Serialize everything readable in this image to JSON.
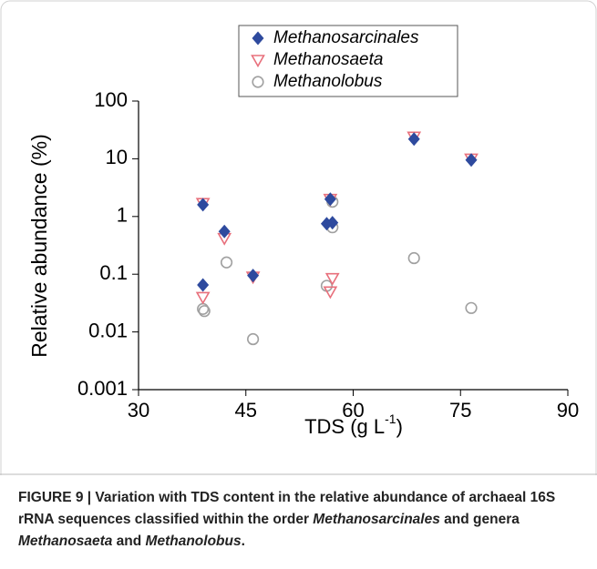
{
  "chart_data": {
    "type": "scatter",
    "y_label": "Relative abundance (%)",
    "x_label": {
      "text": "TDS (g L",
      "superscript": "-1",
      "suffix": ")"
    },
    "xlim": [
      30,
      90
    ],
    "xticks": [
      30,
      45,
      60,
      75,
      90
    ],
    "ylim": [
      0.001,
      100
    ],
    "yticks": [
      0.001,
      0.01,
      0.1,
      1,
      10,
      100
    ],
    "ylog": true,
    "grid": false,
    "legend": "top",
    "series": [
      {
        "name": "Methanosarcinales",
        "color": "#2e4a9e",
        "marker": "diamond",
        "x": [
          39,
          39,
          42,
          46,
          56.3,
          56.8,
          57.1,
          68.5,
          76.5
        ],
        "values": [
          1.6,
          0.065,
          0.55,
          0.095,
          0.75,
          2.0,
          0.78,
          22,
          9.5
        ]
      },
      {
        "name": "Methanosaeta",
        "color": "#e8707c",
        "marker": "triangle",
        "x": [
          39,
          39,
          42,
          46,
          56.8,
          57.1,
          56.8,
          68.5,
          76.5
        ],
        "values": [
          1.7,
          0.04,
          0.42,
          0.09,
          0.05,
          0.085,
          2.0,
          24,
          10
        ]
      },
      {
        "name": "Methanolobus",
        "color": "#a0a0a0",
        "marker": "circle",
        "x": [
          39,
          39.2,
          42.3,
          46,
          56.3,
          57.1,
          57.1,
          68.5,
          76.5
        ],
        "values": [
          0.025,
          0.023,
          0.16,
          0.0075,
          0.063,
          1.8,
          0.65,
          0.19,
          0.026
        ]
      }
    ]
  },
  "caption": [
    "FIGURE 9 | Variation with TDS content in the relative abundance of archaeal 16S rRNA sequences classified within the order ",
    "Methanosarcinales",
    " and genera ",
    "Methanosaeta",
    " and ",
    "Methanolobus",
    "."
  ]
}
